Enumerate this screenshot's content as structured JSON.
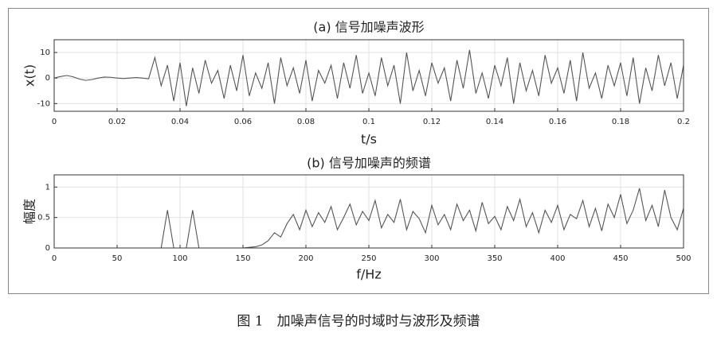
{
  "chart_data": [
    {
      "type": "line",
      "title": "(a) 信号加噪声波形",
      "x_label": "t/s",
      "y_label": "x(t)",
      "x": [
        0,
        0.002,
        0.004,
        0.006,
        0.008,
        0.01,
        0.012,
        0.014,
        0.016,
        0.018,
        0.02,
        0.022,
        0.024,
        0.026,
        0.028,
        0.03,
        0.032,
        0.034,
        0.036,
        0.038,
        0.04,
        0.042,
        0.044,
        0.046,
        0.048,
        0.05,
        0.052,
        0.054,
        0.056,
        0.058,
        0.06,
        0.062,
        0.064,
        0.066,
        0.068,
        0.07,
        0.072,
        0.074,
        0.076,
        0.078,
        0.08,
        0.082,
        0.084,
        0.086,
        0.088,
        0.09,
        0.092,
        0.094,
        0.096,
        0.098,
        0.1,
        0.102,
        0.104,
        0.106,
        0.108,
        0.11,
        0.112,
        0.114,
        0.116,
        0.118,
        0.12,
        0.122,
        0.124,
        0.126,
        0.128,
        0.13,
        0.132,
        0.134,
        0.136,
        0.138,
        0.14,
        0.142,
        0.144,
        0.146,
        0.148,
        0.15,
        0.152,
        0.154,
        0.156,
        0.158,
        0.16,
        0.162,
        0.164,
        0.166,
        0.168,
        0.17,
        0.172,
        0.174,
        0.176,
        0.178,
        0.18,
        0.182,
        0.184,
        0.186,
        0.188,
        0.19,
        0.192,
        0.194,
        0.196,
        0.198,
        0.2
      ],
      "series": [
        {
          "color": "#555555",
          "values": [
            0,
            0.6,
            1,
            0.5,
            -0.4,
            -0.9,
            -0.6,
            0,
            0.4,
            0.3,
            0,
            -0.2,
            0,
            0.2,
            0,
            -0.3,
            8,
            -3,
            5,
            -9,
            6,
            -11,
            4,
            -6,
            7,
            -2,
            3,
            -8,
            5,
            -5,
            9,
            -7,
            2,
            -4,
            6,
            -10,
            8,
            -3,
            4,
            -6,
            7,
            -9,
            3,
            -2,
            5,
            -8,
            6,
            -4,
            9,
            -6,
            2,
            -7,
            8,
            -3,
            5,
            -10,
            10,
            -5,
            3,
            -7,
            6,
            -2,
            4,
            -9,
            7,
            -4,
            11,
            -6,
            2,
            -8,
            5,
            -3,
            8,
            -10,
            6,
            -5,
            3,
            -7,
            9,
            -2,
            4,
            -6,
            7,
            -9,
            10,
            -4,
            2,
            -8,
            5,
            -3,
            6,
            -7,
            8,
            -10,
            4,
            -5,
            9,
            -3,
            6,
            -8,
            5
          ]
        }
      ],
      "xlim": [
        0,
        0.2
      ],
      "xticks": [
        0,
        0.02,
        0.04,
        0.06,
        0.08,
        0.1,
        0.12,
        0.14,
        0.16,
        0.18,
        0.2
      ],
      "ylim": [
        -13,
        15
      ],
      "yticks": [
        -10,
        0,
        10
      ],
      "grid": true
    },
    {
      "type": "line",
      "title": "(b) 信号加噪声的频谱",
      "x_label": "f/Hz",
      "y_label": "幅度",
      "x": [
        0,
        5,
        10,
        15,
        20,
        25,
        30,
        35,
        40,
        45,
        50,
        55,
        60,
        65,
        70,
        75,
        80,
        85,
        90,
        95,
        100,
        105,
        110,
        115,
        120,
        125,
        130,
        135,
        140,
        145,
        150,
        155,
        160,
        165,
        170,
        175,
        180,
        185,
        190,
        195,
        200,
        205,
        210,
        215,
        220,
        225,
        230,
        235,
        240,
        245,
        250,
        255,
        260,
        265,
        270,
        275,
        280,
        285,
        290,
        295,
        300,
        305,
        310,
        315,
        320,
        325,
        330,
        335,
        340,
        345,
        350,
        355,
        360,
        365,
        370,
        375,
        380,
        385,
        390,
        395,
        400,
        405,
        410,
        415,
        420,
        425,
        430,
        435,
        440,
        445,
        450,
        455,
        460,
        465,
        470,
        475,
        480,
        485,
        490,
        495,
        500
      ],
      "series": [
        {
          "color": "#555555",
          "values": [
            0,
            0,
            0,
            0,
            0,
            0,
            0,
            0,
            0,
            0,
            0,
            0,
            0,
            0,
            0,
            0,
            0,
            0,
            0.62,
            0,
            0,
            0,
            0.62,
            0,
            0,
            0,
            0,
            0,
            0,
            0,
            0,
            0.01,
            0.02,
            0.05,
            0.12,
            0.25,
            0.18,
            0.4,
            0.55,
            0.3,
            0.62,
            0.35,
            0.58,
            0.42,
            0.68,
            0.3,
            0.5,
            0.72,
            0.38,
            0.6,
            0.45,
            0.78,
            0.33,
            0.55,
            0.42,
            0.8,
            0.3,
            0.6,
            0.48,
            0.25,
            0.7,
            0.38,
            0.55,
            0.3,
            0.72,
            0.45,
            0.62,
            0.28,
            0.75,
            0.4,
            0.52,
            0.3,
            0.68,
            0.45,
            0.8,
            0.35,
            0.58,
            0.25,
            0.62,
            0.42,
            0.7,
            0.3,
            0.55,
            0.48,
            0.78,
            0.35,
            0.65,
            0.28,
            0.72,
            0.5,
            0.88,
            0.4,
            0.62,
            0.98,
            0.45,
            0.7,
            0.35,
            0.95,
            0.5,
            0.3,
            0.65
          ]
        }
      ],
      "xlim": [
        0,
        500
      ],
      "xticks": [
        0,
        50,
        100,
        150,
        200,
        250,
        300,
        350,
        400,
        450,
        500
      ],
      "ylim": [
        0,
        1.2
      ],
      "yticks": [
        0,
        0.5,
        1
      ],
      "grid": true
    }
  ],
  "caption": "图 1　加噪声信号的时域时与波形及频谱"
}
